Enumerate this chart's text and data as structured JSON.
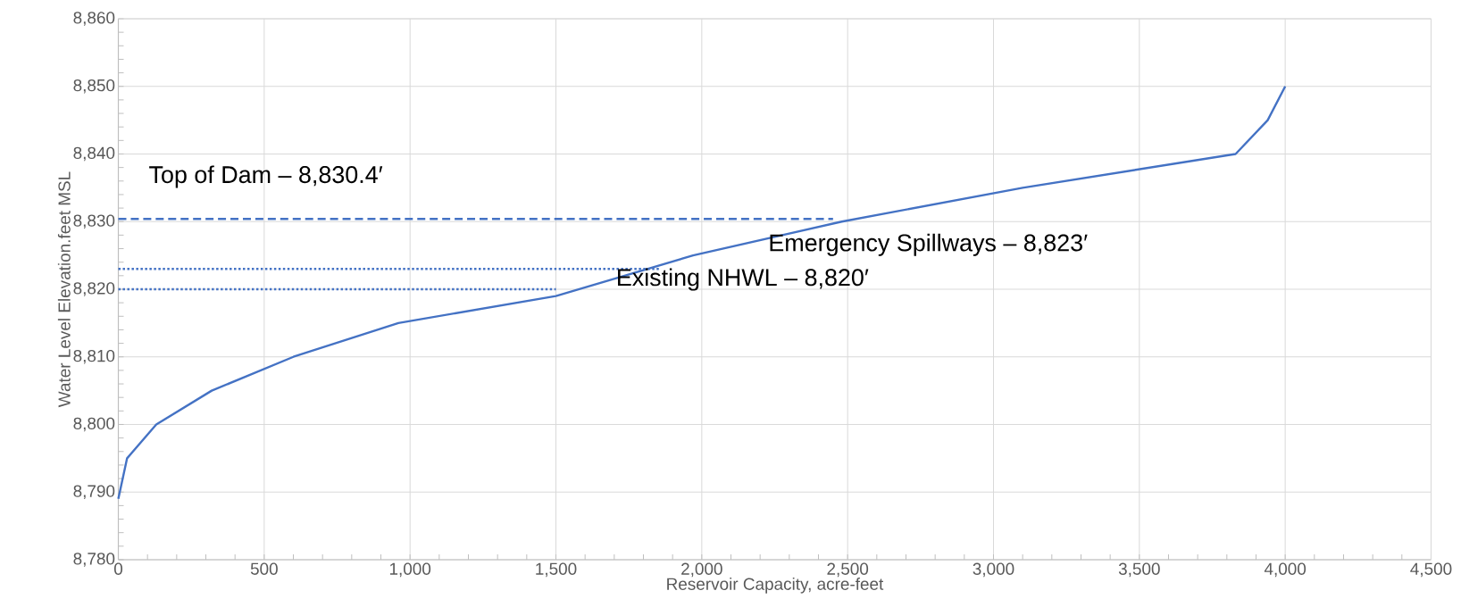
{
  "chart_data": {
    "type": "line",
    "xlabel": "Reservoir Capacity, acre-feet",
    "ylabel": "Water Level Elevation.feet MSL",
    "series": [
      {
        "x": [
          0,
          30,
          130,
          320,
          600,
          960,
          1500,
          1970,
          2480,
          3100,
          3830,
          3940,
          4000
        ],
        "values": [
          8789,
          8795,
          8800,
          8805,
          8810,
          8815,
          8819,
          8825,
          8830,
          8835,
          8840,
          8845,
          8850
        ],
        "color": "#4472c4",
        "line_style": "solid"
      },
      {
        "x": [
          0,
          2450
        ],
        "values": [
          8830.4,
          8830.4
        ],
        "color": "#4472c4",
        "line_style": "dashed"
      },
      {
        "x": [
          0,
          1860
        ],
        "values": [
          8823,
          8823
        ],
        "color": "#4472c4",
        "line_style": "dotted"
      },
      {
        "x": [
          0,
          1500
        ],
        "values": [
          8820,
          8820
        ],
        "color": "#4472c4",
        "line_style": "dotted"
      }
    ],
    "annotations": [
      "Top of Dam – 8,830.4′",
      "Emergency Spillways – 8,823′",
      "Existing NHWL – 8,820′"
    ],
    "xlim": [
      0,
      4500
    ],
    "ylim": [
      8780,
      8860
    ],
    "xticks": [
      0,
      500,
      {
        "value": 1000,
        "label": "1,000"
      },
      {
        "value": 1500,
        "label": "1,500"
      },
      {
        "value": 2000,
        "label": "2,000"
      },
      {
        "value": 2500,
        "label": "2,500"
      },
      {
        "value": 3000,
        "label": "3,000"
      },
      {
        "value": 3500,
        "label": "3,500"
      },
      {
        "value": 4000,
        "label": "4,000"
      },
      {
        "value": 4500,
        "label": "4,500"
      }
    ],
    "yticks": [
      {
        "value": 8780,
        "label": "8,780"
      },
      {
        "value": 8790,
        "label": "8,790"
      },
      {
        "value": 8800,
        "label": "8,800"
      },
      {
        "value": 8810,
        "label": "8,810"
      },
      {
        "value": 8820,
        "label": "8,820"
      },
      {
        "value": 8830,
        "label": "8,830"
      },
      {
        "value": 8840,
        "label": "8,840"
      },
      {
        "value": 8850,
        "label": "8,850"
      },
      {
        "value": 8860,
        "label": "8,860"
      }
    ],
    "grid": true
  }
}
